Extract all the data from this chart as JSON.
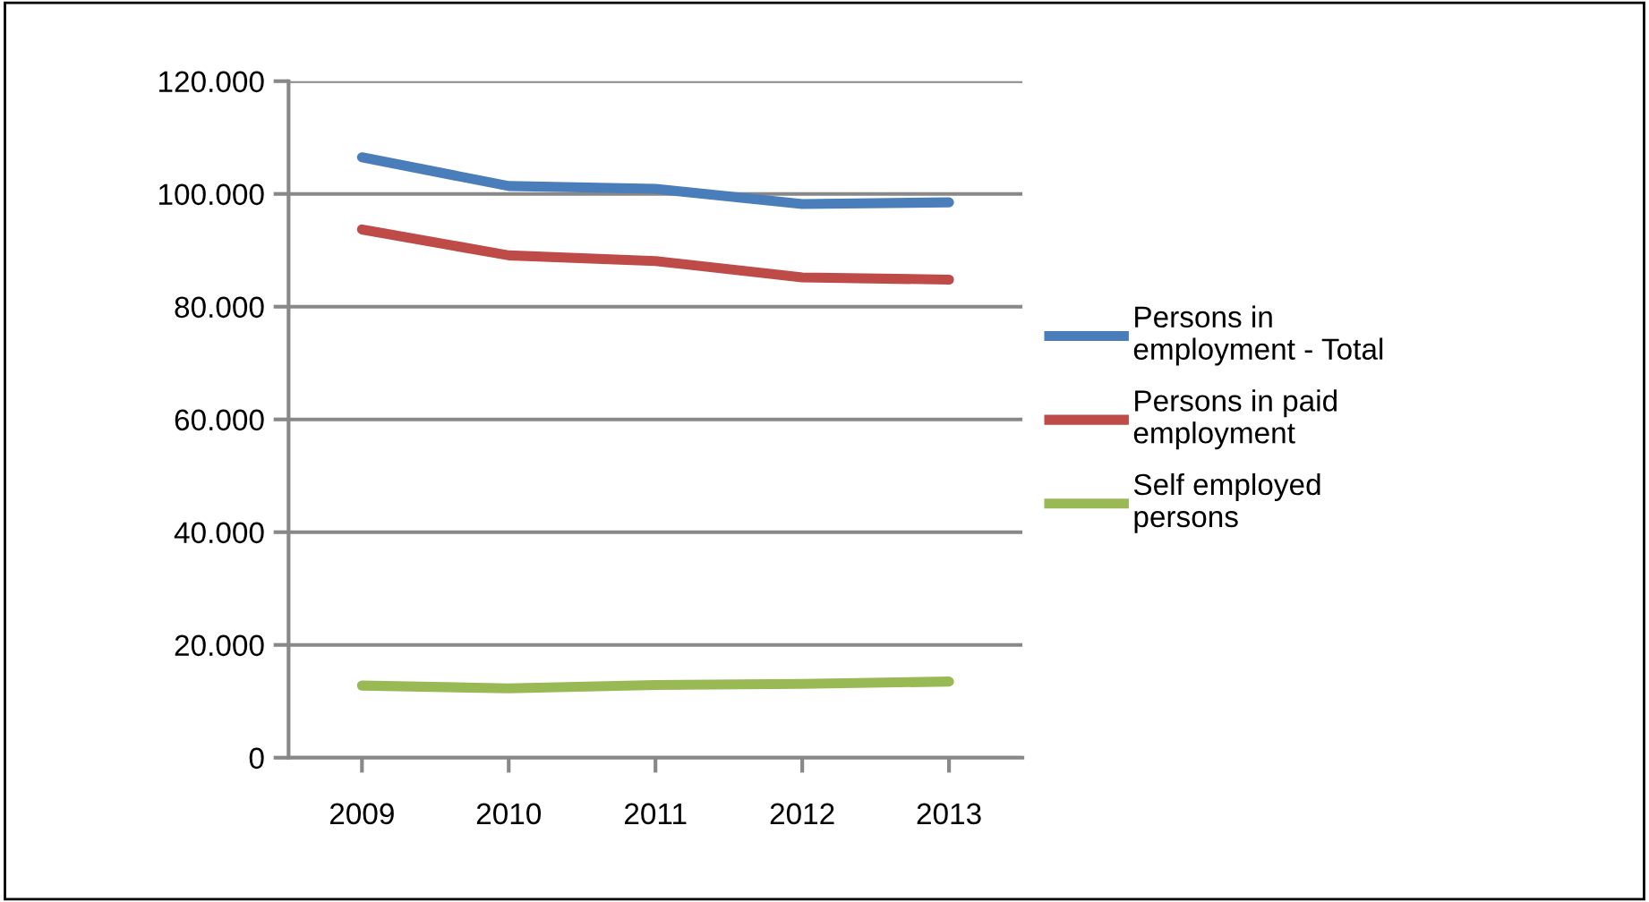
{
  "chart_data": {
    "type": "line",
    "categories": [
      "2009",
      "2010",
      "2011",
      "2012",
      "2013"
    ],
    "series": [
      {
        "name": "Persons in employment - Total",
        "color": "#4a7ebb",
        "values": [
          106500,
          101400,
          100900,
          98200,
          98500
        ]
      },
      {
        "name": "Persons in paid employment",
        "color": "#be4b48",
        "values": [
          93700,
          89100,
          88100,
          85200,
          84800
        ]
      },
      {
        "name": "Self employed persons",
        "color": "#98b954",
        "values": [
          12800,
          12300,
          12900,
          13100,
          13500
        ]
      }
    ],
    "ylim": [
      0,
      120000
    ],
    "yticks": [
      {
        "value": 0,
        "label": "0"
      },
      {
        "value": 20000,
        "label": "20.000"
      },
      {
        "value": 40000,
        "label": "40.000"
      },
      {
        "value": 60000,
        "label": "60.000"
      },
      {
        "value": 80000,
        "label": "80.000"
      },
      {
        "value": 100000,
        "label": "100.000"
      },
      {
        "value": 120000,
        "label": "120.000"
      }
    ],
    "grid": "y",
    "legend": "right",
    "marker": "none",
    "line_style": "solid"
  }
}
